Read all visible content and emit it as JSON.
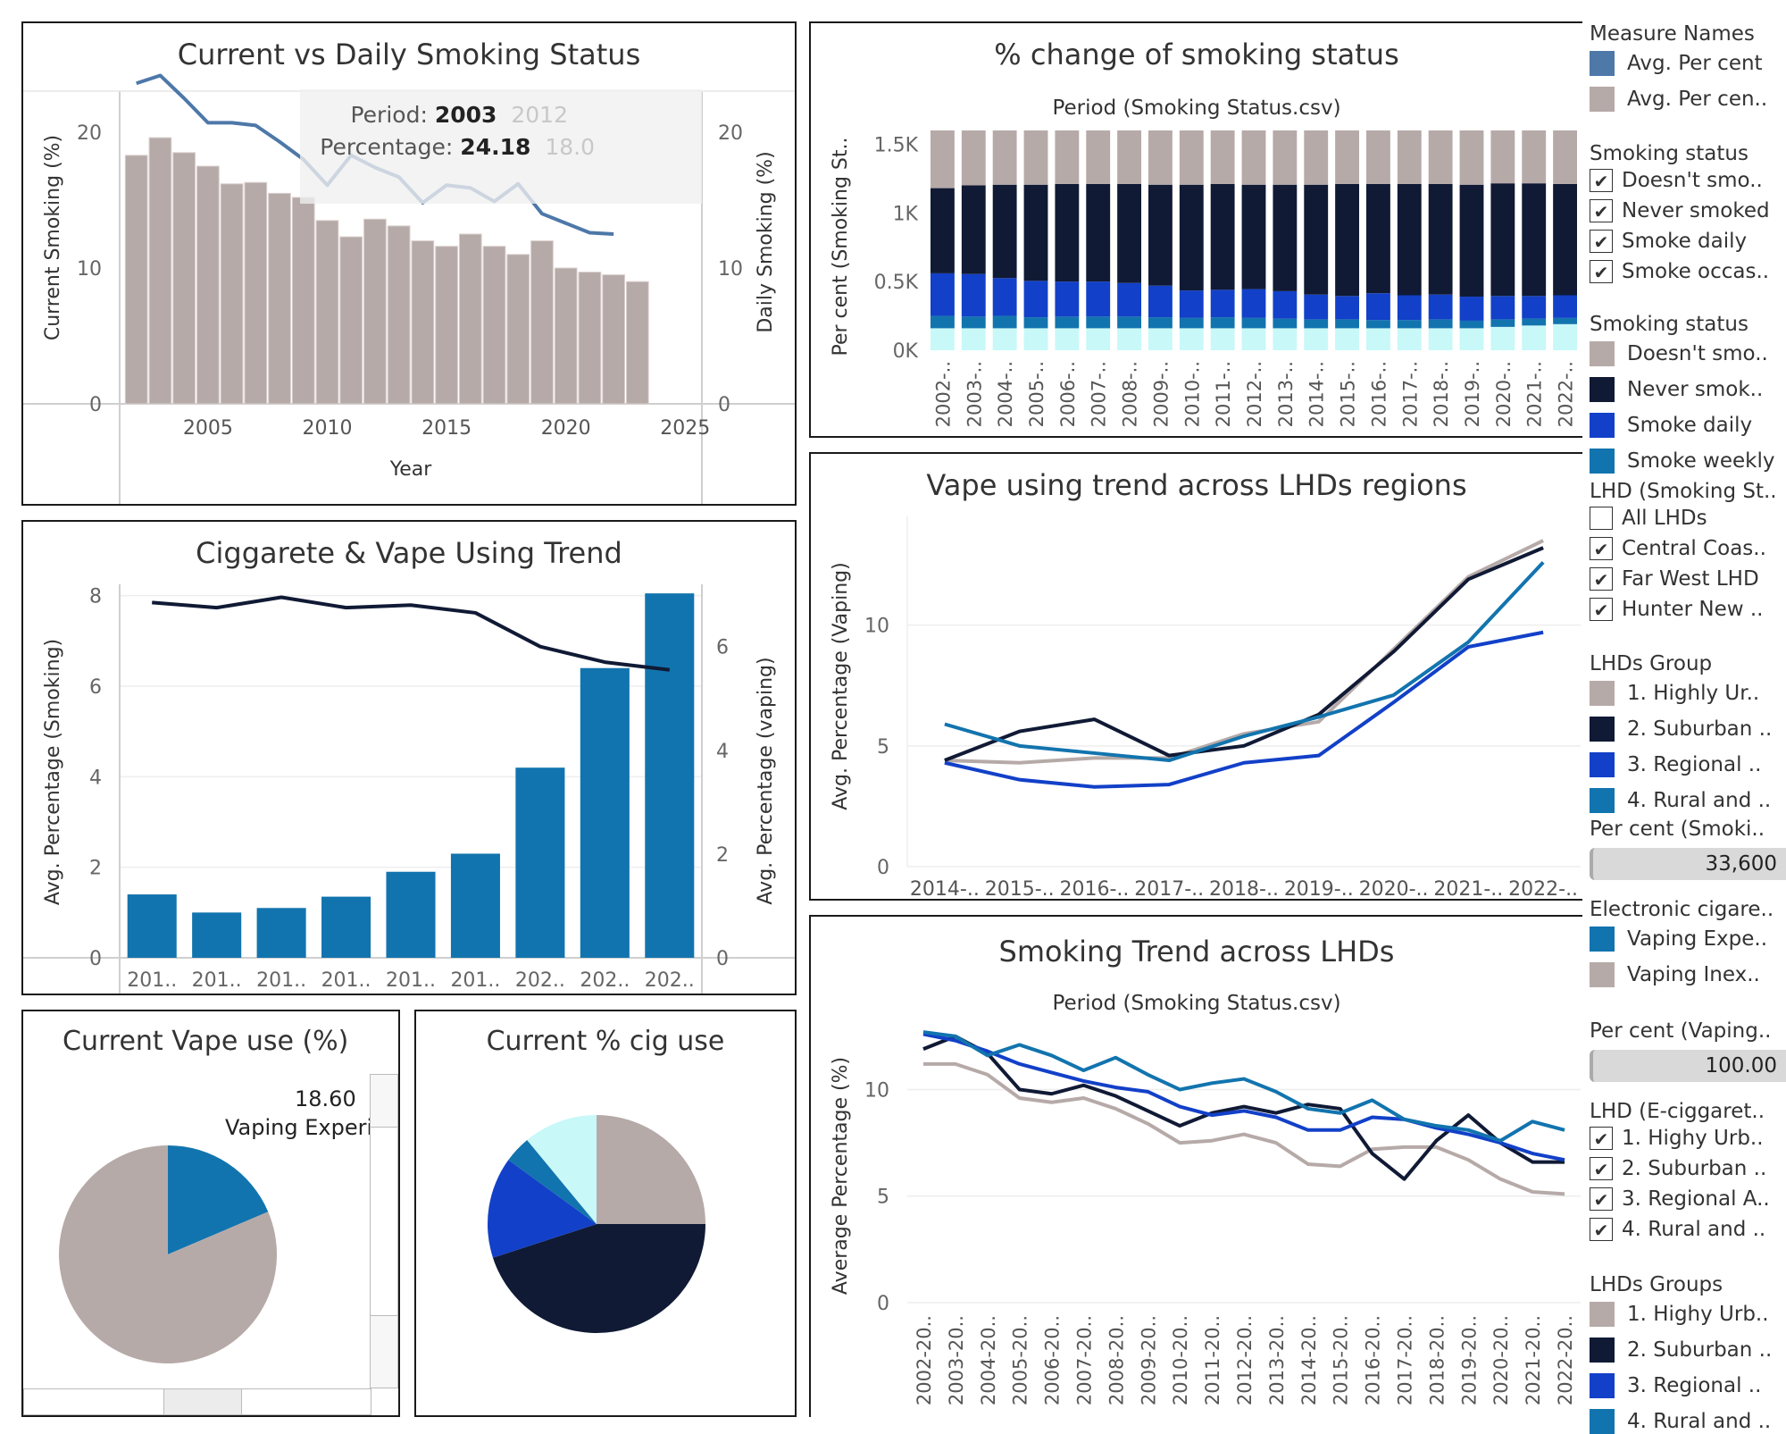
{
  "colors": {
    "taupe": "#b6aaa8",
    "navy": "#101a35",
    "royal": "#1240c8",
    "teal": "#1274ae",
    "steel": "#4d78a8",
    "cyan": "#c8f8f8",
    "grid": "#e8e8e8"
  },
  "panels": {
    "p1": {
      "title": "Current vs Daily Smoking Status"
    },
    "p2": {
      "title": "% change of smoking status",
      "subtitle": "Period (Smoking Status.csv)"
    },
    "p3": {
      "title": "Ciggarete & Vape Using Trend"
    },
    "p4": {
      "title": "Vape using trend across LHDs regions"
    },
    "p5": {
      "title": "Current Vape use (%)"
    },
    "p6": {
      "title": "Current % cig use"
    },
    "p7": {
      "title": "Smoking Trend across LHDs",
      "subtitle": "Period (Smoking Status.csv)"
    }
  },
  "tooltip": {
    "period_label": "Period:",
    "period_value": "2003",
    "period_ghost": "2012",
    "pct_label": "Percentage:",
    "pct_value": "24.18",
    "pct_ghost": "18.0"
  },
  "chart_data": [
    {
      "id": "current-vs-daily",
      "type": "bar",
      "title": "Current vs Daily Smoking Status",
      "xlabel": "Year",
      "ylabel": "Current Smoking (%)",
      "ylabel_right": "Daily Smoking (%)",
      "xlim": [
        2001.3,
        2025.7
      ],
      "ylim": [
        0,
        25
      ],
      "x_ticks": [
        2005,
        2010,
        2015,
        2020,
        2025
      ],
      "y_ticks": [
        0,
        10,
        20
      ],
      "bars": {
        "name": "Daily Smoking",
        "x": [
          2002,
          2003,
          2004,
          2005,
          2006,
          2007,
          2008,
          2009,
          2010,
          2011,
          2012,
          2013,
          2014,
          2015,
          2016,
          2017,
          2018,
          2019,
          2020,
          2021,
          2022,
          2023
        ],
        "values": [
          18.3,
          19.6,
          18.5,
          17.5,
          16.2,
          16.3,
          15.5,
          15.2,
          13.5,
          12.3,
          13.6,
          13.1,
          12.0,
          11.6,
          12.5,
          11.6,
          11.0,
          12.0,
          10.0,
          9.7,
          9.5,
          9.0
        ]
      },
      "line": {
        "name": "Current Smoking",
        "x": [
          2002,
          2003,
          2004,
          2005,
          2006,
          2007,
          2008,
          2009,
          2010,
          2011,
          2012,
          2013,
          2014,
          2015,
          2016,
          2017,
          2018,
          2019,
          2020,
          2021,
          2022,
          2023
        ],
        "values": [
          23.6,
          24.18,
          22.5,
          20.7,
          20.7,
          20.5,
          19.3,
          18.0,
          16.1,
          18.3,
          17.4,
          16.7,
          14.8,
          16.1,
          15.9,
          14.9,
          16.2,
          14.0,
          13.3,
          12.6,
          12.5,
          null
        ]
      }
    },
    {
      "id": "pct-change",
      "type": "bar",
      "title": "% change of smoking status",
      "subtitle": "Period (Smoking Status.csv)",
      "ylabel": "Per cent (Smoking St..",
      "y_tick_labels": [
        "0K",
        "0.5K",
        "1K",
        "1.5K"
      ],
      "y_ticks": [
        0,
        500,
        1000,
        1500
      ],
      "ylim": [
        0,
        1600
      ],
      "categories": [
        "2002-..",
        "2003-..",
        "2004-..",
        "2005-..",
        "2006-..",
        "2007-..",
        "2008-..",
        "2009-..",
        "2010-..",
        "2011-..",
        "2012-..",
        "2013-..",
        "2014-..",
        "2015-..",
        "2016-..",
        "2017-..",
        "2018-..",
        "2019-..",
        "2020-..",
        "2021-..",
        "2022-.."
      ],
      "series": [
        {
          "name": "Smoke occasionally",
          "values": [
            160,
            160,
            160,
            160,
            160,
            160,
            160,
            160,
            160,
            160,
            160,
            160,
            160,
            160,
            160,
            160,
            160,
            160,
            170,
            180,
            190
          ]
        },
        {
          "name": "Smoke weekly",
          "values": [
            90,
            85,
            90,
            80,
            85,
            85,
            85,
            80,
            75,
            80,
            75,
            70,
            65,
            65,
            60,
            60,
            65,
            55,
            55,
            50,
            45
          ]
        },
        {
          "name": "Smoke daily",
          "values": [
            310,
            310,
            275,
            265,
            255,
            255,
            245,
            230,
            200,
            200,
            210,
            200,
            180,
            170,
            195,
            180,
            180,
            175,
            170,
            165,
            165
          ]
        },
        {
          "name": "Never smoked",
          "values": [
            620,
            645,
            680,
            700,
            710,
            710,
            720,
            735,
            770,
            770,
            760,
            775,
            800,
            815,
            795,
            810,
            805,
            815,
            820,
            820,
            810
          ]
        },
        {
          "name": "Doesn't smoke",
          "values": [
            420,
            400,
            395,
            395,
            390,
            390,
            390,
            395,
            395,
            390,
            395,
            395,
            395,
            390,
            390,
            390,
            390,
            395,
            385,
            385,
            390
          ]
        }
      ]
    },
    {
      "id": "cig-vape-trend",
      "type": "bar",
      "title": "Ciggarete & Vape Using Trend",
      "ylabel": "Avg. Percentage (Smoking)",
      "ylabel_right": "Avg. Percentage (vaping)",
      "categories": [
        "201..",
        "201..",
        "201..",
        "201..",
        "201..",
        "201..",
        "202..",
        "202..",
        "202.."
      ],
      "y_ticks": [
        0,
        2,
        4,
        6,
        8
      ],
      "ylim": [
        0,
        8.25
      ],
      "y_ticks_right": [
        0,
        2,
        4,
        6
      ],
      "ylim_right": [
        0,
        7.2
      ],
      "bars": {
        "name": "Avg. Percentage (Smoking)",
        "values": [
          1.4,
          1.0,
          1.1,
          1.35,
          1.9,
          2.3,
          4.2,
          6.4,
          8.05
        ]
      },
      "line": {
        "name": "Avg. Percentage (vaping)",
        "values": [
          6.85,
          6.75,
          6.95,
          6.75,
          6.8,
          6.65,
          6.0,
          5.7,
          5.55
        ]
      }
    },
    {
      "id": "vape-lhd",
      "type": "line",
      "title": "Vape using trend across LHDs regions",
      "ylabel": "Avg. Percentage (Vaping)",
      "categories": [
        "2014-..",
        "2015-..",
        "2016-..",
        "2017-..",
        "2018-..",
        "2019-..",
        "2020-..",
        "2021-..",
        "2022-.."
      ],
      "y_ticks": [
        0,
        5,
        10
      ],
      "ylim": [
        0,
        14.5
      ],
      "series": [
        {
          "name": "1. Highly Urban",
          "color": "taupe",
          "values": [
            4.4,
            4.3,
            4.5,
            4.5,
            5.5,
            6.0,
            9.0,
            12.0,
            13.5
          ]
        },
        {
          "name": "2. Suburban",
          "color": "navy",
          "values": [
            4.4,
            5.6,
            6.1,
            4.6,
            5.0,
            6.3,
            8.9,
            11.9,
            13.2
          ]
        },
        {
          "name": "3. Regional",
          "color": "royal",
          "values": [
            4.3,
            3.6,
            3.3,
            3.4,
            4.3,
            4.6,
            6.8,
            9.1,
            9.7
          ]
        },
        {
          "name": "4. Rural and Remote",
          "color": "teal",
          "values": [
            5.9,
            5.0,
            4.7,
            4.4,
            5.4,
            6.2,
            7.1,
            9.3,
            12.6
          ]
        }
      ]
    },
    {
      "id": "vape-pie",
      "type": "pie",
      "title": "Current Vape use (%)",
      "label_value": "18.60",
      "label_text": "Vaping Experie",
      "slices": [
        {
          "name": "Vaping Experienced",
          "value": 18.6,
          "color": "teal"
        },
        {
          "name": "Vaping Inexperienced",
          "value": 81.4,
          "color": "taupe"
        }
      ]
    },
    {
      "id": "cig-pie",
      "type": "pie",
      "title": "Current % cig use",
      "slices": [
        {
          "name": "Doesn't smoke",
          "value": 25,
          "color": "taupe"
        },
        {
          "name": "Never smoked",
          "value": 45,
          "color": "navy"
        },
        {
          "name": "Smoke daily",
          "value": 15,
          "color": "royal"
        },
        {
          "name": "Smoke weekly",
          "value": 4,
          "color": "teal"
        },
        {
          "name": "Smoke occasionally",
          "value": 11,
          "color": "cyan"
        }
      ]
    },
    {
      "id": "smoking-lhd",
      "type": "line",
      "title": "Smoking Trend across LHDs",
      "subtitle": "Period (Smoking Status.csv)",
      "ylabel": "Average Percentage (%)",
      "categories": [
        "2002-20..",
        "2003-20..",
        "2004-20..",
        "2005-20..",
        "2006-20..",
        "2007-20..",
        "2008-20..",
        "2009-20..",
        "2010-20..",
        "2011-20..",
        "2012-20..",
        "2013-20..",
        "2014-20..",
        "2015-20..",
        "2016-20..",
        "2017-20..",
        "2018-20..",
        "2019-20..",
        "2020-20..",
        "2021-20..",
        "2022-20.."
      ],
      "y_ticks": [
        0,
        5,
        10
      ],
      "ylim": [
        0,
        13.5
      ],
      "series": [
        {
          "name": "1. Highy Urban",
          "color": "taupe",
          "values": [
            11.2,
            11.2,
            10.7,
            9.6,
            9.4,
            9.6,
            9.1,
            8.4,
            7.5,
            7.6,
            7.9,
            7.5,
            6.5,
            6.4,
            7.2,
            7.3,
            7.3,
            6.7,
            5.8,
            5.2,
            5.1
          ]
        },
        {
          "name": "2. Suburban",
          "color": "navy",
          "values": [
            11.9,
            12.5,
            11.7,
            10.0,
            9.8,
            10.2,
            9.7,
            9.0,
            8.3,
            8.9,
            9.2,
            8.9,
            9.3,
            9.1,
            7.0,
            5.8,
            7.6,
            8.8,
            7.5,
            6.6,
            6.6
          ]
        },
        {
          "name": "3. Regional",
          "color": "royal",
          "values": [
            12.6,
            12.3,
            11.8,
            11.2,
            10.8,
            10.4,
            10.1,
            9.9,
            9.2,
            8.8,
            9.0,
            8.7,
            8.1,
            8.1,
            8.7,
            8.6,
            8.2,
            7.9,
            7.5,
            7.0,
            6.7
          ]
        },
        {
          "name": "4. Rural and Remote",
          "color": "teal",
          "values": [
            12.7,
            12.5,
            11.6,
            12.1,
            11.6,
            10.9,
            11.5,
            10.7,
            10.0,
            10.3,
            10.5,
            9.9,
            9.1,
            8.9,
            9.5,
            8.6,
            8.3,
            8.1,
            7.6,
            8.5,
            8.1
          ]
        }
      ]
    }
  ],
  "legend": {
    "measure_names": {
      "title": "Measure Names",
      "items": [
        {
          "label": "Avg. Per cent",
          "color": "#4d78a8"
        },
        {
          "label": "Avg. Per cen..",
          "color": "#b6aaa8"
        }
      ]
    },
    "smoking_status_filter": {
      "title": "Smoking status",
      "items": [
        {
          "label": "Doesn't smo..",
          "checked": true
        },
        {
          "label": "Never smoked",
          "checked": true
        },
        {
          "label": "Smoke daily",
          "checked": true
        },
        {
          "label": "Smoke occas..",
          "checked": true
        }
      ]
    },
    "smoking_status_colors": {
      "title": "Smoking status",
      "items": [
        {
          "label": "Doesn't smo..",
          "color": "#b6aaa8"
        },
        {
          "label": "Never smok..",
          "color": "#101a35"
        },
        {
          "label": "Smoke daily",
          "color": "#1240c8"
        },
        {
          "label": "Smoke weekly",
          "color": "#1274ae"
        }
      ]
    },
    "lhd_filter": {
      "title": "LHD (Smoking St..",
      "items": [
        {
          "label": "All LHDs",
          "checked": false
        },
        {
          "label": "Central Coas..",
          "checked": true
        },
        {
          "label": "Far West LHD",
          "checked": true
        },
        {
          "label": "Hunter New ..",
          "checked": true
        }
      ]
    },
    "lhds_group": {
      "title": "LHDs Group",
      "items": [
        {
          "label": "1. Highly Ur..",
          "color": "#b6aaa8"
        },
        {
          "label": "2. Suburban ..",
          "color": "#101a35"
        },
        {
          "label": "3. Regional ..",
          "color": "#1240c8"
        },
        {
          "label": "4. Rural and ..",
          "color": "#1274ae"
        }
      ]
    },
    "per_cent_smoking": {
      "title": "Per cent (Smoki..",
      "value": "33,600"
    },
    "electronic_cig": {
      "title": "Electronic cigare..",
      "items": [
        {
          "label": "Vaping Expe..",
          "color": "#1274ae"
        },
        {
          "label": "Vaping Inex..",
          "color": "#b6aaa8"
        }
      ]
    },
    "per_cent_vaping": {
      "title": "Per cent (Vaping..",
      "value": "100.00"
    },
    "lhd_ecig_filter": {
      "title": "LHD (E-ciggaret..",
      "items": [
        {
          "label": "1. Highy Urb..",
          "checked": true
        },
        {
          "label": "2. Suburban ..",
          "checked": true
        },
        {
          "label": "3. Regional A..",
          "checked": true
        },
        {
          "label": "4. Rural and ..",
          "checked": true
        }
      ]
    },
    "lhds_groups": {
      "title": "LHDs Groups",
      "items": [
        {
          "label": "1. Highy Urb..",
          "color": "#b6aaa8"
        },
        {
          "label": "2. Suburban ..",
          "color": "#101a35"
        },
        {
          "label": "3. Regional ..",
          "color": "#1240c8"
        },
        {
          "label": "4. Rural and ..",
          "color": "#1274ae"
        }
      ]
    }
  }
}
